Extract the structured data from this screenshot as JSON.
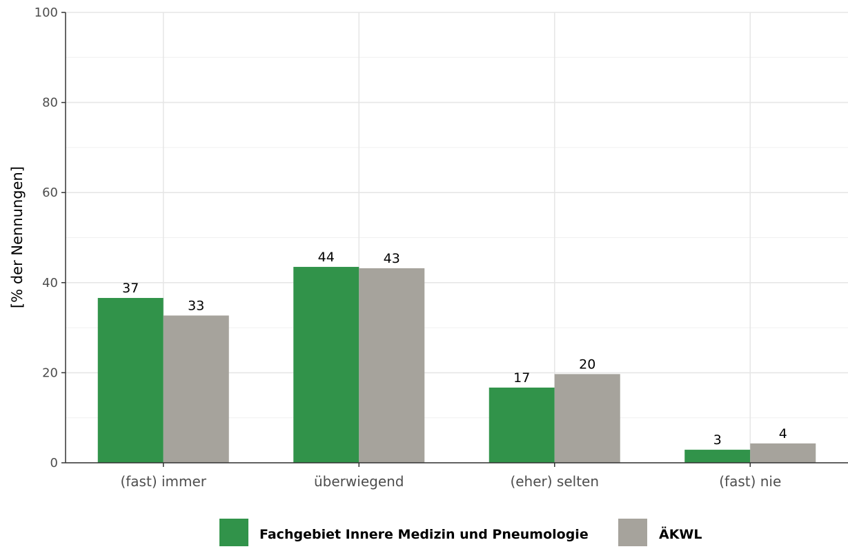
{
  "chart_data": {
    "type": "bar",
    "categories": [
      "(fast) immer",
      "überwiegend",
      "(eher) selten",
      "(fast) nie"
    ],
    "series": [
      {
        "name": "Fachgebiet Innere Medizin und Pneumologie",
        "color": "#31934a",
        "values": [
          36.6,
          43.5,
          16.7,
          2.9
        ],
        "labels": [
          "37",
          "44",
          "17",
          "3"
        ]
      },
      {
        "name": "ÄKWL",
        "color": "#a6a39c",
        "values": [
          32.7,
          43.2,
          19.7,
          4.3
        ],
        "labels": [
          "33",
          "43",
          "20",
          "4"
        ]
      }
    ],
    "ylabel": "[% der Nennungen]",
    "ylim": [
      0,
      100
    ],
    "yticks": [
      0,
      20,
      40,
      60,
      80,
      100
    ],
    "grid": true,
    "legend_position": "bottom"
  }
}
